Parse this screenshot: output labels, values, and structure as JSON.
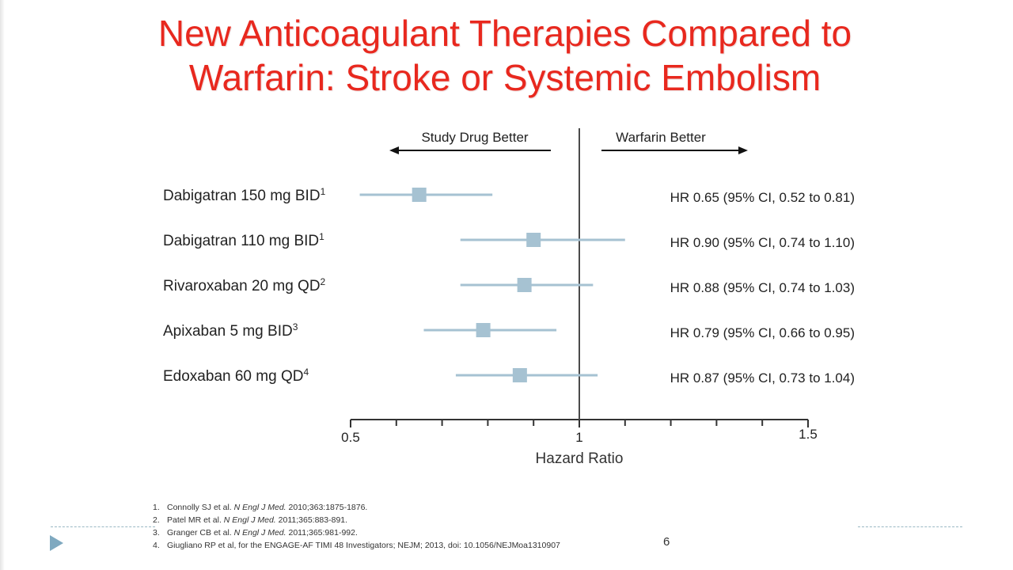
{
  "slide": {
    "title_lines": [
      "New Anticoagulant Therapies Compared to",
      "Warfarin: Stroke or Systemic Embolism"
    ],
    "page_number": "6"
  },
  "chart_data": {
    "type": "forest",
    "title": "New Anticoagulant Therapies Compared to Warfarin: Stroke or Systemic Embolism",
    "xlabel": "Hazard Ratio",
    "xlim": [
      0.5,
      1.5
    ],
    "xscale": "linear",
    "reference_line": 1,
    "tick_labels": [
      {
        "value": 0.5,
        "label": "0.5"
      },
      {
        "value": 1,
        "label": "1"
      },
      {
        "value": 1.5,
        "label": "1.5"
      }
    ],
    "minor_ticks": [
      0.6,
      0.7,
      0.8,
      0.9,
      1.1,
      1.2,
      1.3,
      1.4
    ],
    "direction_labels": {
      "left": "Study Drug Better",
      "right": "Warfarin Better"
    },
    "colors": {
      "marker": "#a6c2d2",
      "axis": "#333333"
    },
    "rows": [
      {
        "label": "Dabigatran 150 mg BID",
        "sup": "1",
        "hr": 0.65,
        "ci": [
          0.52,
          0.81
        ],
        "result": "HR 0.65 (95% CI, 0.52 to 0.81)"
      },
      {
        "label": "Dabigatran 110 mg BID",
        "sup": "1",
        "hr": 0.9,
        "ci": [
          0.74,
          1.1
        ],
        "result": "HR 0.90 (95% CI, 0.74 to 1.10)"
      },
      {
        "label": "Rivaroxaban 20 mg QD",
        "sup": "2",
        "hr": 0.88,
        "ci": [
          0.74,
          1.03
        ],
        "result": "HR 0.88 (95% CI, 0.74 to 1.03)"
      },
      {
        "label": "Apixaban 5 mg BID",
        "sup": "3",
        "hr": 0.79,
        "ci": [
          0.66,
          0.95
        ],
        "result": "HR 0.79 (95% CI, 0.66 to 0.95)"
      },
      {
        "label": "Edoxaban 60 mg QD",
        "sup": "4",
        "hr": 0.87,
        "ci": [
          0.73,
          1.04
        ],
        "result": "HR 0.87 (95% CI, 0.73 to 1.04)"
      }
    ]
  },
  "references": [
    {
      "num": "1.",
      "pre": "Connolly SJ et al. ",
      "journal": "N Engl J Med.",
      "post": " 2010;363:1875-1876."
    },
    {
      "num": "2.",
      "pre": "Patel MR et al. ",
      "journal": "N Engl J Med.",
      "post": " 2011;365:883-891."
    },
    {
      "num": "3.",
      "pre": "Granger CB et al. ",
      "journal": "N Engl J Med.",
      "post": " 2011;365:981-992."
    },
    {
      "num": "4.",
      "pre": "Giugliano RP et al, for the ENGAGE-AF TIMI 48 Investigators; NEJM; 2013, doi: 10.1056/NEJMoa1310907",
      "journal": "",
      "post": ""
    }
  ]
}
